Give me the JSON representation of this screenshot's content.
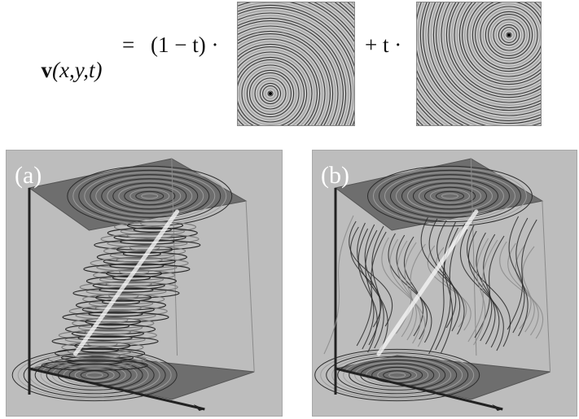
{
  "formula": {
    "lhs_symbol": "v",
    "lhs_args": "(x,y,t)",
    "equals": "=",
    "factor_a": "(1 − t) ·",
    "factor_b": "+ t ·"
  },
  "panels": [
    {
      "label": "(a)",
      "style": "dense circular streamlines in slices"
    },
    {
      "label": "(b)",
      "style": "long curved pathlines"
    }
  ],
  "colors": {
    "panel_background": "#bdbdbd",
    "swatch_background": "#c6c6c6",
    "line_dark": "#2a2a2a",
    "highlight": "#f4f4f4",
    "axis": "#222222"
  }
}
